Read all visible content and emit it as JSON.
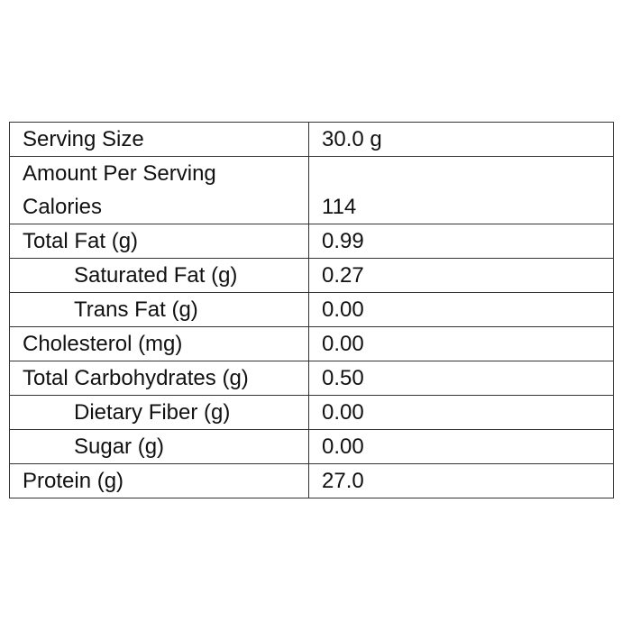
{
  "table": {
    "serving": {
      "label": "Serving Size",
      "value": "30.0 g"
    },
    "amount_heading": "Amount Per Serving",
    "calories": {
      "label": "Calories",
      "value": "114"
    },
    "rows": [
      [
        "Total Fat (g)",
        "0.99"
      ],
      [
        "Saturated Fat (g)",
        "0.27"
      ],
      [
        "Trans Fat (g)",
        "0.00"
      ],
      [
        "Cholesterol (mg)",
        "0.00"
      ],
      [
        "Total Carbohydrates (g)",
        "0.50"
      ],
      [
        "Dietary Fiber (g)",
        "0.00"
      ],
      [
        "Sugar (g)",
        "0.00"
      ],
      [
        "Protein (g)",
        "27.0"
      ]
    ]
  }
}
